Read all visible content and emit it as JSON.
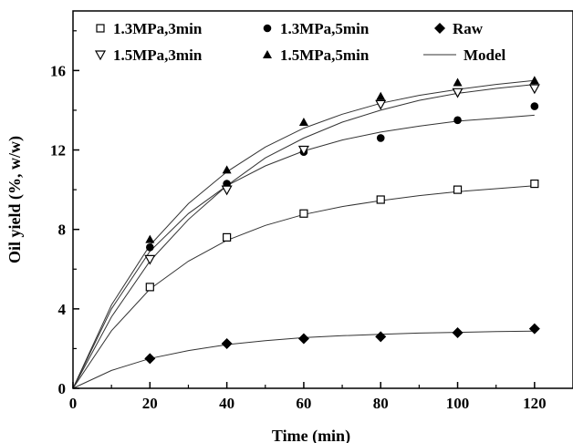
{
  "chart_data": {
    "type": "scatter",
    "xlabel": "Time (min)",
    "ylabel": "Oil yield (%, w/w)",
    "xlim": [
      0,
      130
    ],
    "ylim": [
      0,
      19
    ],
    "x_ticks": [
      0,
      20,
      40,
      60,
      80,
      100,
      120
    ],
    "y_ticks": [
      0,
      4,
      8,
      12,
      16
    ],
    "grid": false,
    "legend_position": "top",
    "series": [
      {
        "name": "1.3MPa,3min",
        "marker": "open-square",
        "x": [
          20,
          40,
          60,
          80,
          100,
          120
        ],
        "y": [
          5.1,
          7.6,
          8.8,
          9.5,
          10.0,
          10.3
        ],
        "model": [
          [
            0,
            0
          ],
          [
            10,
            2.9
          ],
          [
            20,
            5.0
          ],
          [
            30,
            6.4
          ],
          [
            40,
            7.45
          ],
          [
            50,
            8.2
          ],
          [
            60,
            8.75
          ],
          [
            70,
            9.15
          ],
          [
            80,
            9.45
          ],
          [
            90,
            9.7
          ],
          [
            100,
            9.9
          ],
          [
            110,
            10.05
          ],
          [
            120,
            10.2
          ]
        ]
      },
      {
        "name": "1.3MPa,5min",
        "marker": "filled-circle",
        "x": [
          20,
          40,
          60,
          80,
          100,
          120
        ],
        "y": [
          7.1,
          10.3,
          11.9,
          12.6,
          13.5,
          14.2
        ],
        "model": [
          [
            0,
            0
          ],
          [
            10,
            4.0
          ],
          [
            20,
            6.9
          ],
          [
            30,
            8.8
          ],
          [
            40,
            10.2
          ],
          [
            50,
            11.2
          ],
          [
            60,
            11.95
          ],
          [
            70,
            12.5
          ],
          [
            80,
            12.9
          ],
          [
            90,
            13.2
          ],
          [
            100,
            13.45
          ],
          [
            110,
            13.6
          ],
          [
            120,
            13.75
          ]
        ]
      },
      {
        "name": "Raw",
        "marker": "filled-diamond",
        "x": [
          20,
          40,
          60,
          80,
          100,
          120
        ],
        "y": [
          1.5,
          2.25,
          2.5,
          2.6,
          2.8,
          3.0
        ],
        "model": [
          [
            0,
            0
          ],
          [
            10,
            0.9
          ],
          [
            20,
            1.5
          ],
          [
            30,
            1.9
          ],
          [
            40,
            2.2
          ],
          [
            50,
            2.4
          ],
          [
            60,
            2.55
          ],
          [
            70,
            2.65
          ],
          [
            80,
            2.72
          ],
          [
            90,
            2.78
          ],
          [
            100,
            2.82
          ],
          [
            110,
            2.86
          ],
          [
            120,
            2.88
          ]
        ]
      },
      {
        "name": "1.5MPa,3min",
        "marker": "open-triangle-down",
        "x": [
          20,
          40,
          60,
          80,
          100,
          120
        ],
        "y": [
          6.5,
          10.0,
          12.0,
          14.3,
          14.9,
          15.1
        ],
        "model": [
          [
            0,
            0
          ],
          [
            10,
            3.6
          ],
          [
            20,
            6.4
          ],
          [
            30,
            8.5
          ],
          [
            40,
            10.2
          ],
          [
            50,
            11.6
          ],
          [
            60,
            12.6
          ],
          [
            70,
            13.4
          ],
          [
            80,
            14.0
          ],
          [
            90,
            14.5
          ],
          [
            100,
            14.85
          ],
          [
            110,
            15.1
          ],
          [
            120,
            15.3
          ]
        ]
      },
      {
        "name": "1.5MPa,5min",
        "marker": "filled-triangle-up",
        "x": [
          20,
          40,
          60,
          80,
          100,
          120
        ],
        "y": [
          7.5,
          11.0,
          13.4,
          14.7,
          15.4,
          15.5
        ],
        "model": [
          [
            0,
            0
          ],
          [
            10,
            4.2
          ],
          [
            20,
            7.2
          ],
          [
            30,
            9.3
          ],
          [
            40,
            10.9
          ],
          [
            50,
            12.15
          ],
          [
            60,
            13.1
          ],
          [
            70,
            13.8
          ],
          [
            80,
            14.35
          ],
          [
            90,
            14.75
          ],
          [
            100,
            15.05
          ],
          [
            110,
            15.3
          ],
          [
            120,
            15.5
          ]
        ]
      }
    ],
    "model_label": "Model"
  }
}
